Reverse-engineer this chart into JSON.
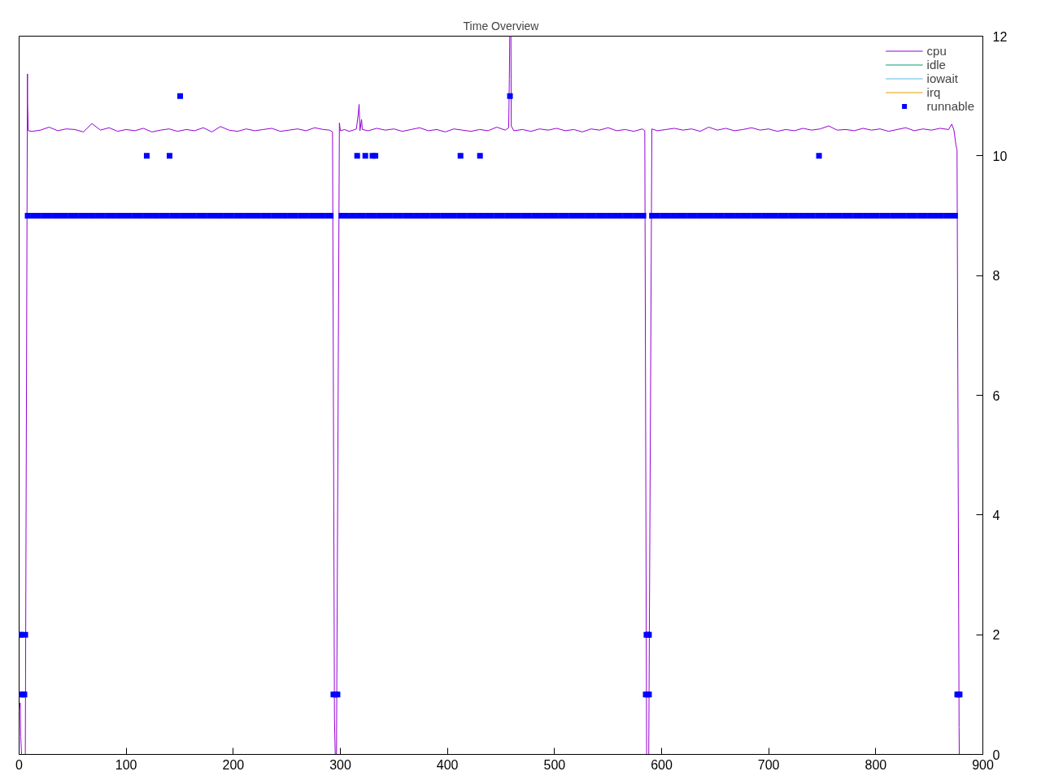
{
  "chart_data": {
    "type": "line",
    "title": "Time Overview",
    "xlim": [
      0,
      900
    ],
    "xticks": [
      0,
      100,
      200,
      300,
      400,
      500,
      600,
      700,
      800,
      900
    ],
    "ylim": [
      0,
      12
    ],
    "yticks": [
      0,
      2,
      4,
      6,
      8,
      10,
      12
    ],
    "legend": "top right",
    "series": [
      {
        "name": "cpu",
        "color": "#9400d3",
        "x": [
          0,
          1,
          1.5,
          2.3,
          5.8,
          7.8,
          7.9,
          8.5,
          12,
          20,
          28,
          36,
          44,
          52,
          60,
          68,
          76,
          84,
          92,
          100,
          108,
          116,
          124,
          132,
          140,
          148,
          156,
          164,
          172,
          180,
          188,
          196,
          204,
          212,
          220,
          228,
          236,
          244,
          252,
          260,
          268,
          276,
          284,
          290,
          292.7,
          294.5,
          295.2,
          296.4,
          299.1,
          300,
          304,
          308,
          312,
          315,
          316.7,
          317.5,
          318.3,
          319.8,
          320.5,
          326,
          334,
          342,
          350,
          358,
          366,
          374,
          382,
          390,
          398,
          406,
          414,
          422,
          430,
          438,
          446,
          454,
          457.2,
          457.8,
          458.2,
          459.3,
          459.6,
          462,
          470,
          478,
          486,
          494,
          502,
          510,
          518,
          526,
          534,
          542,
          550,
          558,
          566,
          574,
          582,
          584.3,
          586,
          588,
          590.9,
          596,
          604,
          612,
          620,
          628,
          636,
          644,
          652,
          660,
          668,
          676,
          684,
          692,
          700,
          708,
          716,
          724,
          732,
          740,
          748,
          756,
          764,
          772,
          780,
          788,
          796,
          804,
          812,
          820,
          828,
          836,
          844,
          852,
          860,
          868,
          871,
          873,
          874.9,
          875.9,
          877.8,
          878
        ],
        "values": [
          0.72,
          0.86,
          0.3,
          0,
          0,
          11.37,
          10.9,
          10.42,
          10.41,
          10.43,
          10.48,
          10.42,
          10.45,
          10.44,
          10.4,
          10.54,
          10.43,
          10.47,
          10.41,
          10.44,
          10.42,
          10.46,
          10.4,
          10.43,
          10.45,
          10.41,
          10.44,
          10.42,
          10.47,
          10.4,
          10.49,
          10.43,
          10.41,
          10.45,
          10.42,
          10.44,
          10.46,
          10.41,
          10.43,
          10.45,
          10.42,
          10.47,
          10.44,
          10.43,
          10.4,
          0.6,
          0,
          0,
          10.55,
          10.42,
          10.44,
          10.41,
          10.43,
          10.45,
          10.7,
          10.86,
          10.42,
          10.61,
          10.44,
          10.42,
          10.46,
          10.43,
          10.45,
          10.41,
          10.44,
          10.47,
          10.42,
          10.44,
          10.4,
          10.45,
          10.43,
          10.41,
          10.44,
          10.42,
          10.48,
          10.43,
          10.47,
          11.28,
          12,
          12,
          10.5,
          10.42,
          10.44,
          10.41,
          10.45,
          10.43,
          10.46,
          10.42,
          10.44,
          10.4,
          10.45,
          10.43,
          10.47,
          10.42,
          10.44,
          10.41,
          10.45,
          10.42,
          0,
          0,
          10.45,
          10.42,
          10.44,
          10.46,
          10.43,
          10.45,
          10.41,
          10.48,
          10.43,
          10.46,
          10.42,
          10.44,
          10.47,
          10.43,
          10.45,
          10.41,
          10.44,
          10.42,
          10.46,
          10.43,
          10.45,
          10.5,
          10.43,
          10.44,
          10.42,
          10.46,
          10.43,
          10.45,
          10.41,
          10.44,
          10.47,
          10.42,
          10.45,
          10.43,
          10.46,
          10.44,
          10.53,
          10.43,
          10.18,
          10.1,
          0.45,
          0
        ]
      },
      {
        "name": "idle",
        "color": "#009e73"
      },
      {
        "name": "iowait",
        "color": "#56b4e9"
      },
      {
        "name": "irq",
        "color": "#e69f00"
      },
      {
        "name": "runnable",
        "type": "scatter",
        "marker": "square",
        "color": "#0000ff",
        "x": [
          0.4,
          1.3,
          5.7,
          2.1,
          3.5,
          4.9,
          8,
          13,
          18,
          23,
          28,
          33,
          38,
          43,
          48,
          53,
          58,
          63,
          68,
          73,
          78,
          83,
          88,
          93,
          98,
          103,
          108,
          113,
          118,
          123,
          128,
          133,
          138,
          143,
          148,
          153,
          158,
          163,
          168,
          173,
          178,
          183,
          188,
          193,
          198,
          203,
          208,
          213,
          218,
          223,
          228,
          233,
          238,
          243,
          248,
          253,
          258,
          263,
          268,
          273,
          278,
          283,
          288,
          291,
          293.5,
          295.4,
          297.3,
          301,
          306,
          311,
          316,
          321,
          326,
          331,
          336,
          341,
          346,
          351,
          356,
          361,
          366,
          371,
          376,
          381,
          386,
          391,
          396,
          401,
          406,
          411,
          416,
          421,
          426,
          431,
          436,
          441,
          446,
          451,
          456,
          461,
          466,
          471,
          476,
          481,
          486,
          491,
          496,
          501,
          506,
          511,
          516,
          521,
          526,
          531,
          536,
          541,
          546,
          551,
          556,
          561,
          566,
          571,
          576,
          581,
          583,
          585.2,
          586.7,
          588.2,
          585.9,
          587.4,
          588.2,
          591,
          596,
          601,
          606,
          611,
          616,
          621,
          626,
          631,
          636,
          641,
          646,
          651,
          656,
          661,
          666,
          671,
          676,
          681,
          686,
          691,
          696,
          701,
          706,
          711,
          716,
          721,
          726,
          731,
          736,
          741,
          746,
          751,
          756,
          761,
          766,
          771,
          776,
          781,
          786,
          791,
          796,
          801,
          806,
          811,
          816,
          821,
          826,
          831,
          836,
          841,
          846,
          851,
          856,
          861,
          866,
          871,
          874,
          876.1,
          877.2,
          878.3,
          119.2,
          140.5,
          315.7,
          323.3,
          330,
          332.7,
          412.2,
          430.4,
          747,
          150.4,
          458.4
        ],
        "values": [
          2,
          2,
          2,
          1,
          1,
          1,
          9,
          9,
          9,
          9,
          9,
          9,
          9,
          9,
          9,
          9,
          9,
          9,
          9,
          9,
          9,
          9,
          9,
          9,
          9,
          9,
          9,
          9,
          9,
          9,
          9,
          9,
          9,
          9,
          9,
          9,
          9,
          9,
          9,
          9,
          9,
          9,
          9,
          9,
          9,
          9,
          9,
          9,
          9,
          9,
          9,
          9,
          9,
          9,
          9,
          9,
          9,
          9,
          9,
          9,
          9,
          9,
          9,
          9,
          1,
          1,
          1,
          9,
          9,
          9,
          9,
          9,
          9,
          9,
          9,
          9,
          9,
          9,
          9,
          9,
          9,
          9,
          9,
          9,
          9,
          9,
          9,
          9,
          9,
          9,
          9,
          9,
          9,
          9,
          9,
          9,
          9,
          9,
          9,
          9,
          9,
          9,
          9,
          9,
          9,
          9,
          9,
          9,
          9,
          9,
          9,
          9,
          9,
          9,
          9,
          9,
          9,
          9,
          9,
          9,
          9,
          9,
          9,
          9,
          9,
          1,
          1,
          1,
          2,
          2,
          2,
          9,
          9,
          9,
          9,
          9,
          9,
          9,
          9,
          9,
          9,
          9,
          9,
          9,
          9,
          9,
          9,
          9,
          9,
          9,
          9,
          9,
          9,
          9,
          9,
          9,
          9,
          9,
          9,
          9,
          9,
          9,
          9,
          9,
          9,
          9,
          9,
          9,
          9,
          9,
          9,
          9,
          9,
          9,
          9,
          9,
          9,
          9,
          9,
          9,
          9,
          9,
          9,
          9,
          9,
          9,
          9,
          9,
          9,
          1,
          1,
          1,
          10,
          10,
          10,
          10,
          10,
          10,
          10,
          10,
          10,
          11,
          11
        ]
      }
    ]
  }
}
